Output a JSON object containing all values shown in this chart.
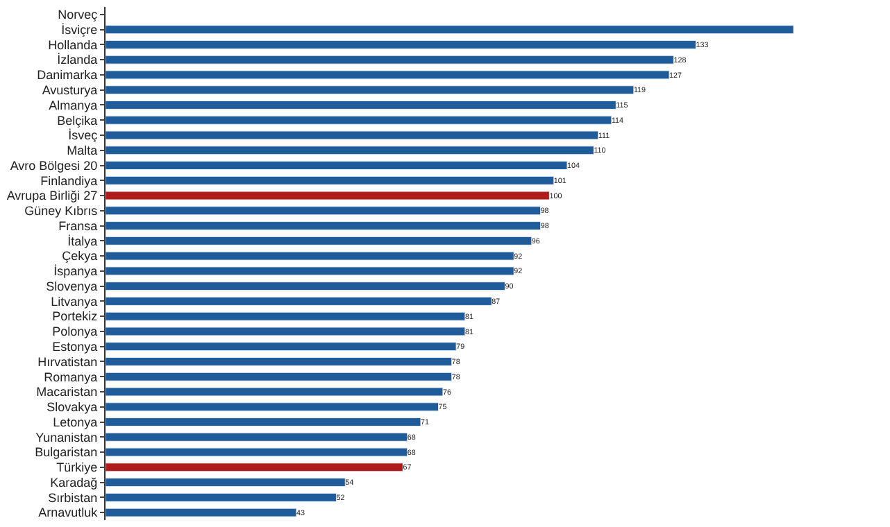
{
  "chart_data": {
    "type": "bar",
    "orientation": "horizontal",
    "categories": [
      "Norveç",
      "İsviçre",
      "Hollanda",
      "İzlanda",
      "Danimarka",
      "Avusturya",
      "Almanya",
      "Belçika",
      "İsveç",
      "Malta",
      "Avro Bölgesi 20",
      "Finlandiya",
      "Avrupa Birliği 27",
      "Güney Kıbrıs",
      "Fransa",
      "İtalya",
      "Çekya",
      "İspanya",
      "Slovenya",
      "Litvanya",
      "Portekiz",
      "Polonya",
      "Estonya",
      "Hırvatistan",
      "Romanya",
      "Macaristan",
      "Slovakya",
      "Letonya",
      "Yunanistan",
      "Bulgaristan",
      "Türkiye",
      "Karadağ",
      "Sırbistan",
      "Arnavutluk"
    ],
    "values": [
      null,
      155,
      133,
      128,
      127,
      119,
      115,
      114,
      111,
      110,
      104,
      101,
      100,
      98,
      98,
      96,
      92,
      92,
      90,
      87,
      81,
      81,
      79,
      78,
      78,
      76,
      75,
      71,
      68,
      68,
      67,
      54,
      52,
      43
    ],
    "value_labels": [
      null,
      null,
      "133",
      "128",
      "127",
      "119",
      "115",
      "114",
      "111",
      "110",
      "104",
      "101",
      "100",
      "98",
      "98",
      "96",
      "92",
      "92",
      "90",
      "87",
      "81",
      "81",
      "79",
      "78",
      "78",
      "76",
      "75",
      "71",
      "68",
      "68",
      "67",
      "54",
      "52",
      "43"
    ],
    "colors": [
      "#1f5c99",
      "#1f5c99",
      "#1f5c99",
      "#1f5c99",
      "#1f5c99",
      "#1f5c99",
      "#1f5c99",
      "#1f5c99",
      "#1f5c99",
      "#1f5c99",
      "#1f5c99",
      "#1f5c99",
      "#b01c1c",
      "#1f5c99",
      "#1f5c99",
      "#1f5c99",
      "#1f5c99",
      "#1f5c99",
      "#1f5c99",
      "#1f5c99",
      "#1f5c99",
      "#1f5c99",
      "#1f5c99",
      "#1f5c99",
      "#1f5c99",
      "#1f5c99",
      "#1f5c99",
      "#1f5c99",
      "#1f5c99",
      "#1f5c99",
      "#b01c1c",
      "#1f5c99",
      "#1f5c99",
      "#1f5c99"
    ],
    "legend": false
  }
}
